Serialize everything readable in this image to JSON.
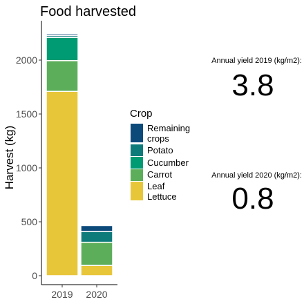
{
  "chart_data": {
    "type": "bar",
    "stacked": true,
    "title": "Food harvested",
    "ylabel": "Harvest (kg)",
    "xlabel": "",
    "categories": [
      "2019",
      "2020"
    ],
    "ylim": [
      0,
      2350
    ],
    "yticks": [
      0,
      500,
      1000,
      1500,
      2000
    ],
    "legend": {
      "title": "Crop",
      "placement": "right"
    },
    "series": [
      {
        "name": "Leaf Lettuce",
        "label_lines": [
          "Leaf",
          "Lettuce"
        ],
        "color": "#E8C63A",
        "values": [
          1710,
          95
        ]
      },
      {
        "name": "Carrot",
        "label_lines": [
          "Carrot"
        ],
        "color": "#5DAE5A",
        "values": [
          285,
          215
        ]
      },
      {
        "name": "Cucumber",
        "label_lines": [
          "Cucumber"
        ],
        "color": "#009B72",
        "values": [
          215,
          0
        ]
      },
      {
        "name": "Potato",
        "label_lines": [
          "Potato"
        ],
        "color": "#0E7B7B",
        "values": [
          18,
          100
        ]
      },
      {
        "name": "Remaining crops",
        "label_lines": [
          "Remaining",
          "crops"
        ],
        "color": "#0C4A7A",
        "values": [
          15,
          55
        ]
      }
    ]
  },
  "annotations": [
    {
      "label": "Annual yield 2019 (kg/m2):",
      "value": "3.8"
    },
    {
      "label": "Annual yield 2020 (kg/m2):",
      "value": "0.8"
    }
  ]
}
